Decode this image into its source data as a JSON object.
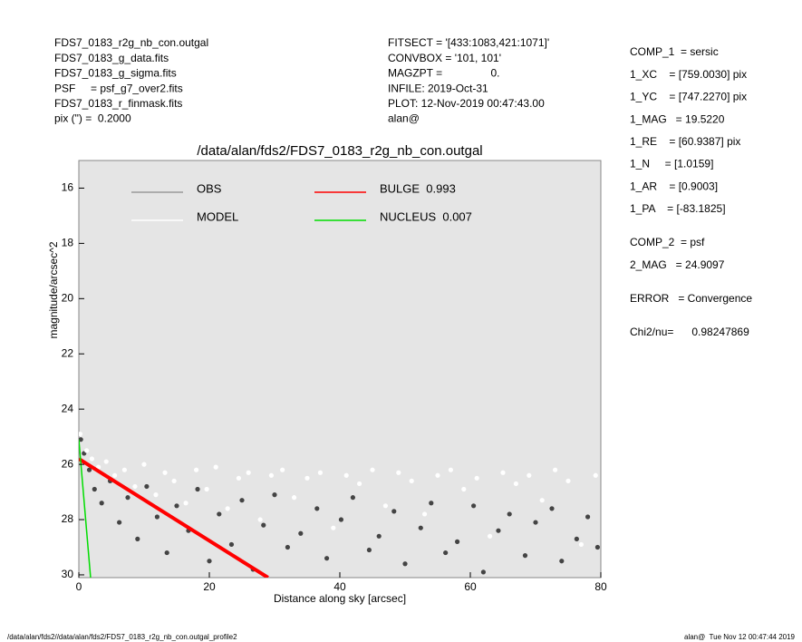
{
  "header": {
    "left": [
      "FDS7_0183_r2g_nb_con.outgal",
      "FDS7_0183_g_data.fits",
      "FDS7_0183_g_sigma.fits",
      "PSF     = psf_g7_over2.fits",
      "FDS7_0183_r_finmask.fits",
      "pix (\") =  0.2000"
    ],
    "middle": [
      "FITSECT = '[433:1083,421:1071]'",
      "CONVBOX = '101, 101'",
      "MAGZPT =                0.",
      "INFILE: 2019-Oct-31",
      "PLOT: 12-Nov-2019 00:47:43.00",
      "alan@"
    ]
  },
  "side_panel": {
    "component_1": [
      "COMP_1  = sersic",
      "1_XC    = [759.0030] pix",
      "1_YC    = [747.2270] pix",
      "1_MAG   = 19.5220",
      "1_RE    = [60.9387] pix",
      "1_N     = [1.0159]",
      "1_AR    = [0.9003]",
      "1_PA    = [-83.1825]"
    ],
    "component_2": [
      "COMP_2  = psf",
      "2_MAG   = 24.9097"
    ],
    "error": "ERROR   = Convergence",
    "chi2": "Chi2/nu=      0.98247869"
  },
  "footer": {
    "left": "/data/alan/fds2//data/alan/fds2/FDS7_0183_r2g_nb_con.outgal_profile2",
    "right": "alan@  Tue Nov 12 00:47:44 2019"
  },
  "chart_data": {
    "type": "scatter",
    "title": "/data/alan/fds2/FDS7_0183_r2g_nb_con.outgal",
    "x_label": "Distance along sky [arcsec]",
    "y_label": "magnitude/arcsec^2",
    "xlim": [
      0,
      80
    ],
    "xticks": [
      0,
      20,
      40,
      60,
      80
    ],
    "ylim": [
      30.1,
      15
    ],
    "yticks": [
      16,
      18,
      20,
      22,
      24,
      26,
      28,
      30
    ],
    "series": [
      {
        "name": "OBS",
        "type": "scatter",
        "color": "#444444",
        "legend_color": "#999999",
        "x": [
          0.3,
          0.8,
          1.6,
          2.4,
          3.5,
          4.8,
          6.2,
          7.5,
          9,
          10.4,
          12,
          13.5,
          15,
          16.8,
          18.2,
          20,
          21.5,
          23.4,
          25,
          26.7,
          28.3,
          30,
          32,
          34,
          36.5,
          38,
          40.2,
          42,
          44.5,
          46,
          48.3,
          50,
          52.4,
          54,
          56.2,
          58,
          60.5,
          62,
          64.3,
          66,
          68.4,
          70,
          72.5,
          74,
          76.3,
          78,
          79.5
        ],
        "values": [
          25.1,
          25.6,
          26.2,
          26.9,
          27.4,
          26.6,
          28.1,
          27.2,
          28.7,
          26.8,
          27.9,
          29.2,
          27.5,
          28.4,
          26.9,
          29.5,
          27.8,
          28.9,
          27.3,
          29.8,
          28.2,
          27.1,
          29.0,
          28.5,
          27.6,
          29.4,
          28.0,
          27.2,
          29.1,
          28.6,
          27.7,
          29.6,
          28.3,
          27.4,
          29.2,
          28.8,
          27.5,
          29.9,
          28.4,
          27.8,
          29.3,
          28.1,
          27.6,
          29.5,
          28.7,
          27.9,
          29.0
        ]
      },
      {
        "name": "MODEL",
        "type": "scatter",
        "color": "#ffffff",
        "legend_color": "#ffffff",
        "x": [
          0.2,
          1.2,
          2,
          3,
          4.2,
          5.5,
          7,
          8.6,
          10,
          11.8,
          13.2,
          14.6,
          16.4,
          18,
          19.6,
          21,
          22.8,
          24.5,
          26,
          27.8,
          29.5,
          31.2,
          33,
          35,
          37,
          39,
          41,
          43,
          45,
          47,
          49,
          51,
          53,
          55,
          57,
          59,
          61,
          63,
          65,
          67,
          69,
          71,
          73,
          75,
          77,
          79.2
        ],
        "values": [
          24.9,
          25.5,
          25.8,
          26.1,
          25.9,
          26.4,
          26.2,
          26.8,
          26.0,
          27.1,
          26.3,
          26.6,
          27.4,
          26.2,
          26.9,
          26.1,
          27.6,
          26.5,
          26.3,
          28.0,
          26.4,
          26.2,
          27.2,
          26.5,
          26.3,
          28.3,
          26.4,
          26.7,
          26.2,
          27.5,
          26.3,
          26.6,
          27.8,
          26.4,
          26.2,
          26.9,
          26.5,
          28.6,
          26.3,
          26.7,
          26.4,
          27.3,
          26.2,
          26.6,
          28.9,
          26.4
        ]
      },
      {
        "name": "BULGE  0.993",
        "type": "line",
        "color": "#ff0000",
        "legend_color": "#ff0000",
        "x": [
          0,
          29
        ],
        "values": [
          25.8,
          30.1
        ]
      },
      {
        "name": "NUCLEUS  0.007",
        "type": "line",
        "color": "#00dd00",
        "legend_color": "#00dd00",
        "x": [
          0,
          1.8
        ],
        "values": [
          25.1,
          30.1
        ]
      }
    ]
  }
}
